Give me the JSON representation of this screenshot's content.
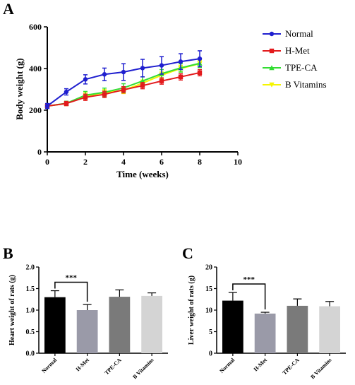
{
  "figure": {
    "panels": [
      "A",
      "B",
      "C"
    ]
  },
  "chart_data": [
    {
      "panel": "A",
      "type": "line",
      "xlabel": "Time (weeks)",
      "ylabel": "Body weight (g)",
      "xlim": [
        0,
        10
      ],
      "ylim": [
        0,
        600
      ],
      "xticks": [
        "0",
        "2",
        "4",
        "6",
        "8",
        "10"
      ],
      "yticks": [
        "0",
        "200",
        "400",
        "600"
      ],
      "grid": false,
      "legend_position": "right",
      "x": [
        0,
        1,
        2,
        3,
        4,
        5,
        6,
        7,
        8
      ],
      "series": [
        {
          "name": "Normal",
          "color": "#1f1fcf",
          "marker": "circle",
          "values": [
            220,
            288,
            348,
            372,
            383,
            402,
            415,
            433,
            447
          ],
          "errors": [
            12,
            15,
            22,
            30,
            40,
            42,
            42,
            38,
            38
          ]
        },
        {
          "name": "H-Met",
          "color": "#e31a1c",
          "marker": "square",
          "values": [
            220,
            232,
            262,
            276,
            298,
            318,
            340,
            360,
            380
          ],
          "errors": [
            8,
            10,
            15,
            15,
            15,
            15,
            15,
            15,
            15
          ]
        },
        {
          "name": "TPE-CA",
          "color": "#33dd33",
          "marker": "triangle",
          "values": [
            220,
            233,
            272,
            286,
            307,
            340,
            375,
            403,
            425
          ],
          "errors": [
            8,
            10,
            18,
            20,
            20,
            20,
            20,
            20,
            20
          ]
        },
        {
          "name": "B Vitamins",
          "color": "#f5f500",
          "marker": "triangle-down",
          "values": [
            220,
            232,
            268,
            284,
            295,
            330,
            368,
            400,
            423
          ],
          "errors": [
            8,
            10,
            15,
            15,
            15,
            15,
            15,
            15,
            15
          ]
        }
      ]
    },
    {
      "panel": "B",
      "type": "bar",
      "ylabel": "Heart weight of rats (g)",
      "ylim": [
        0,
        2.0
      ],
      "yticks": [
        "0.0",
        "0.5",
        "1.0",
        "1.5",
        "2.0"
      ],
      "categories": [
        "Normal",
        "H-Met",
        "TPE-CA",
        "B Vitamins"
      ],
      "values": [
        1.3,
        1.0,
        1.31,
        1.33
      ],
      "errors": [
        0.15,
        0.13,
        0.16,
        0.07
      ],
      "colors": [
        "#000000",
        "#9a9aa8",
        "#7a7a7a",
        "#d4d4d4"
      ],
      "significance": {
        "from": 0,
        "to": 1,
        "label": "***"
      }
    },
    {
      "panel": "C",
      "type": "bar",
      "ylabel": "Liver weight of rats (g)",
      "ylim": [
        0,
        20
      ],
      "yticks": [
        "0",
        "5",
        "10",
        "15",
        "20"
      ],
      "categories": [
        "Normal",
        "H-Met",
        "TPE-CA",
        "B Vitamins"
      ],
      "values": [
        12.2,
        9.2,
        11.0,
        10.9
      ],
      "errors": [
        1.9,
        0.3,
        1.6,
        1.1
      ],
      "colors": [
        "#000000",
        "#9a9aa8",
        "#7a7a7a",
        "#d4d4d4"
      ],
      "significance": {
        "from": 0,
        "to": 1,
        "label": "***"
      }
    }
  ]
}
